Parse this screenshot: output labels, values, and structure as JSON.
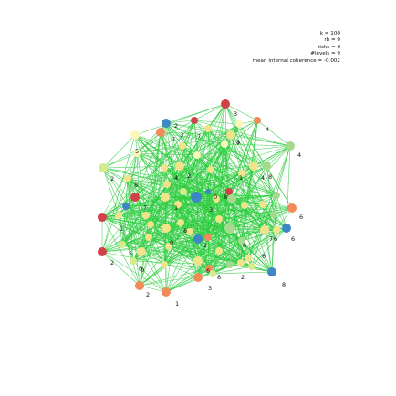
{
  "stats": {
    "k": "k = 100",
    "rb": "rb = 0",
    "ticks": "ticks = 0",
    "levels": "#levels = 9",
    "coherence": "mean internal coherence = -0.002"
  },
  "colors": {
    "edge": "#2ecc40",
    "red": "#d2404a",
    "orange": "#f28a5a",
    "yellow": "#f2e28a",
    "paleyellow": "#fbf7b8",
    "lime": "#d4ec8c",
    "green": "#a5d98e",
    "blue": "#3f86c4"
  },
  "node_labels": [
    "3",
    "4",
    "4",
    "2",
    "2",
    "1",
    "2",
    "0",
    "2",
    "3",
    "1",
    "2",
    "8",
    "6",
    "6",
    "8",
    "5",
    "7",
    "7",
    "8",
    "0",
    "1",
    "7",
    "4",
    "2",
    "8",
    "6",
    "3",
    "0",
    "1",
    "8",
    "5",
    "8",
    "7",
    "6",
    "3",
    "7",
    "8",
    "6",
    "0",
    "2",
    "6",
    "4"
  ]
}
